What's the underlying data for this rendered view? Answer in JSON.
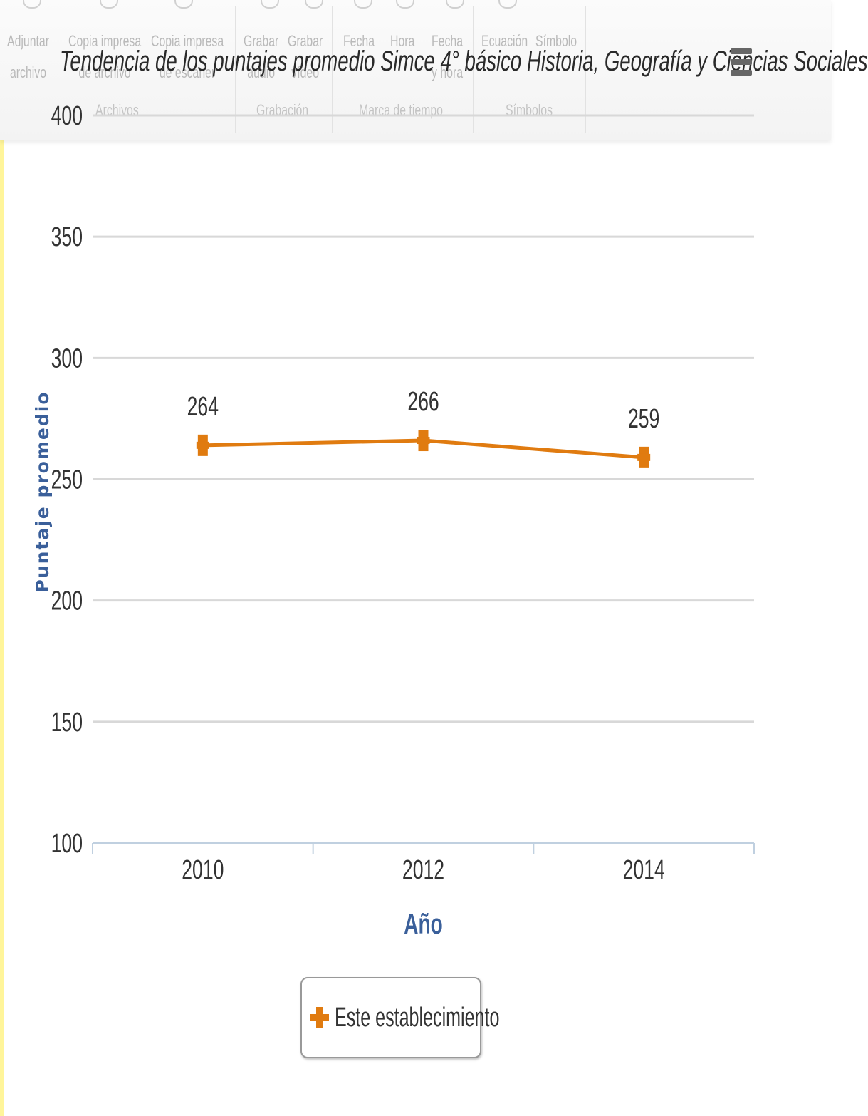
{
  "ribbon": {
    "items": [
      {
        "name": "adjuntar-archivo",
        "label": "Adjuntar\narchivo"
      },
      {
        "name": "copia-impresa-archivo",
        "label": "Copia impresa\nde archivo"
      },
      {
        "name": "copia-impresa-escaner",
        "label": "Copia impresa\nde escáner"
      },
      {
        "name": "grabar-audio",
        "label": "Grabar\naudio"
      },
      {
        "name": "grabar-video",
        "label": "Grabar\nvídeo"
      },
      {
        "name": "fecha",
        "label": "Fecha"
      },
      {
        "name": "hora",
        "label": "Hora"
      },
      {
        "name": "fecha-y-hora",
        "label": "Fecha\ny hora"
      },
      {
        "name": "ecuacion",
        "label": "Ecuación"
      },
      {
        "name": "simbolo",
        "label": "Símbolo"
      }
    ],
    "groups": [
      "Archivos",
      "Grabación",
      "Marca de tiempo",
      "Símbolos"
    ]
  },
  "colors": {
    "series": "#e07b10",
    "axis_title": "#3a5f9a",
    "grid": "#d8d8d8",
    "baseline": "#c0d0e0"
  },
  "chart_data": {
    "type": "line",
    "title": "Tendencia de los puntajes promedio Simce 4° básico Historia, Geografía y Ciencias Sociales",
    "xlabel": "Año",
    "ylabel": "Puntaje promedio",
    "categories": [
      "2010",
      "2012",
      "2014"
    ],
    "series": [
      {
        "name": "Este establecimiento",
        "values": [
          264,
          266,
          259
        ],
        "labels": [
          "264",
          "266",
          "259"
        ]
      }
    ],
    "yticks": [
      "100",
      "150",
      "200",
      "250",
      "300",
      "350",
      "400"
    ],
    "ylim": [
      100,
      400
    ],
    "grid": true,
    "legend": "bottom-center",
    "marker": "square"
  }
}
